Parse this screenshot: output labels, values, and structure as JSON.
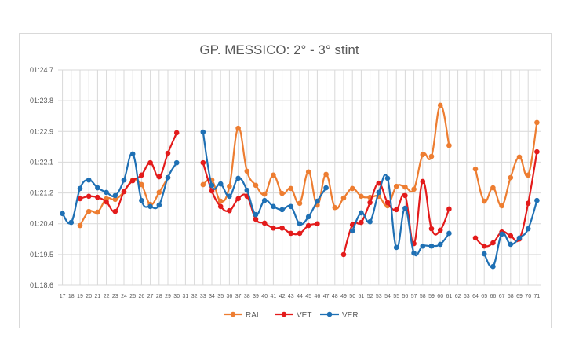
{
  "chart_data": {
    "type": "line",
    "title": "GP. MESSICO: 2° - 3°  stint",
    "xlabel": "",
    "ylabel": "",
    "ylim": [
      78.6,
      84.7
    ],
    "y_tick_labels": [
      "01:18.6",
      "01:19.5",
      "01:20.4",
      "01:21.2",
      "01:22.1",
      "01:22.9",
      "01:23.8",
      "01:24.7"
    ],
    "x": [
      17,
      18,
      19,
      20,
      21,
      22,
      23,
      24,
      25,
      26,
      27,
      28,
      29,
      30,
      31,
      32,
      33,
      34,
      35,
      36,
      37,
      38,
      39,
      40,
      41,
      42,
      43,
      44,
      45,
      46,
      47,
      48,
      49,
      50,
      51,
      52,
      53,
      54,
      55,
      56,
      57,
      58,
      59,
      60,
      61,
      62,
      63,
      64,
      65,
      66,
      67,
      68,
      69,
      70,
      71
    ],
    "grid": "vertical-and-horizontal",
    "legend_position": "bottom",
    "series": [
      {
        "name": "RAI",
        "color": "#ED7D31",
        "values": [
          null,
          null,
          80.29,
          80.69,
          80.67,
          81.05,
          81.03,
          81.25,
          81.58,
          81.45,
          80.89,
          81.23,
          81.65,
          null,
          null,
          null,
          81.45,
          81.58,
          80.98,
          81.4,
          83.05,
          81.83,
          81.43,
          81.18,
          81.72,
          81.2,
          81.34,
          80.92,
          81.81,
          80.87,
          81.74,
          80.8,
          81.07,
          81.34,
          81.12,
          81.09,
          81.12,
          80.85,
          81.4,
          81.38,
          81.32,
          82.3,
          82.25,
          83.7,
          82.56,
          null,
          null,
          81.89,
          80.98,
          81.36,
          80.85,
          81.65,
          82.23,
          81.72,
          83.21
        ]
      },
      {
        "name": "VET",
        "color": "#E31B1B",
        "values": [
          null,
          null,
          81.05,
          81.12,
          81.09,
          80.96,
          80.69,
          81.25,
          81.56,
          81.72,
          82.07,
          81.67,
          82.34,
          82.92,
          null,
          null,
          82.07,
          81.27,
          80.83,
          80.71,
          81.05,
          81.12,
          80.47,
          80.36,
          80.22,
          80.22,
          80.07,
          80.07,
          80.29,
          80.34,
          null,
          null,
          79.47,
          80.31,
          80.38,
          80.94,
          81.49,
          80.94,
          80.74,
          81.14,
          79.78,
          81.54,
          80.2,
          80.16,
          80.76,
          null,
          null,
          79.94,
          79.71,
          79.8,
          80.11,
          80.0,
          79.91,
          80.92,
          82.38
        ]
      },
      {
        "name": "VER",
        "color": "#1F70B4",
        "values": [
          80.63,
          80.38,
          81.34,
          81.58,
          81.36,
          81.23,
          81.14,
          81.58,
          82.32,
          81.0,
          80.83,
          80.87,
          81.65,
          82.07,
          null,
          null,
          82.94,
          81.43,
          81.47,
          81.12,
          81.63,
          81.29,
          80.6,
          81.0,
          80.83,
          80.74,
          80.83,
          80.34,
          80.54,
          80.98,
          81.36,
          null,
          null,
          80.14,
          80.65,
          80.4,
          81.23,
          81.63,
          79.67,
          80.78,
          79.51,
          79.71,
          79.71,
          79.76,
          80.07,
          null,
          null,
          null,
          79.49,
          79.13,
          80.05,
          79.76,
          79.94,
          80.2,
          81.0
        ]
      }
    ]
  }
}
